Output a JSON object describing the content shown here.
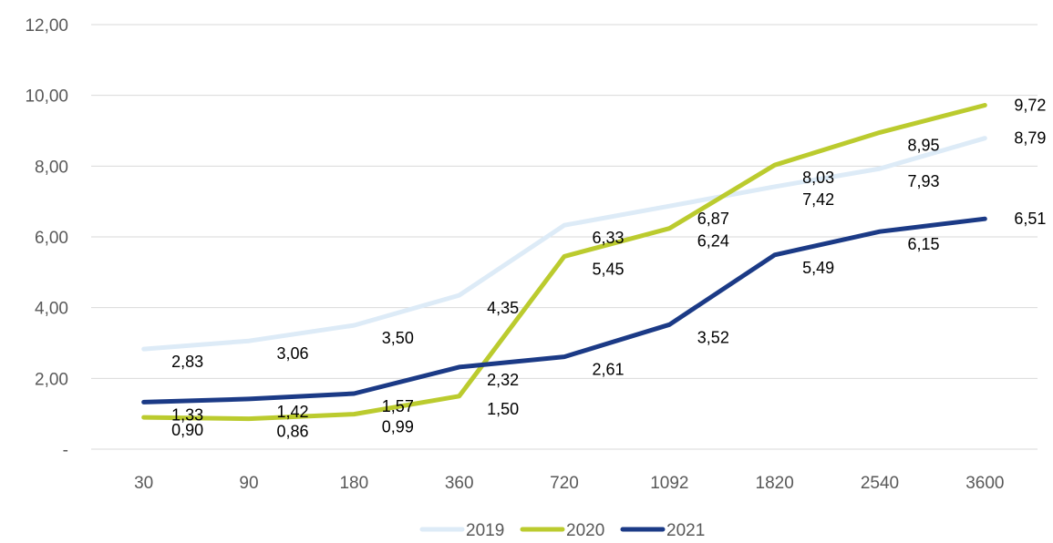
{
  "chart_data": {
    "type": "line",
    "categories": [
      "30",
      "90",
      "180",
      "360",
      "720",
      "1092",
      "1820",
      "2540",
      "3600"
    ],
    "y_ticks": [
      "-",
      "2,00",
      "4,00",
      "6,00",
      "8,00",
      "10,00",
      "12,00"
    ],
    "ylim": [
      0,
      12
    ],
    "grid": true,
    "legend_position": "bottom",
    "series": [
      {
        "name": "2019",
        "color": "#DDEBF7",
        "values": [
          2.83,
          3.06,
          3.5,
          4.35,
          6.33,
          6.87,
          7.42,
          7.93,
          8.79
        ],
        "labels": [
          "2,83",
          "3,06",
          "3,50",
          "4,35",
          "6,33",
          "6,87",
          "7,42",
          "7,93",
          "8,79"
        ]
      },
      {
        "name": "2020",
        "color": "#BBCB2E",
        "values": [
          0.9,
          0.86,
          0.99,
          1.5,
          5.45,
          6.24,
          8.03,
          8.95,
          9.72
        ],
        "labels": [
          "0,90",
          "0,86",
          "0,99",
          "1,50",
          "5,45",
          "6,24",
          "8,03",
          "8,95",
          "9,72"
        ]
      },
      {
        "name": "2021",
        "color": "#1B3A86",
        "values": [
          1.33,
          1.42,
          1.57,
          2.32,
          2.61,
          3.52,
          5.49,
          6.15,
          6.51
        ],
        "labels": [
          "1,33",
          "1,42",
          "1,57",
          "2,32",
          "2,61",
          "3,52",
          "5,49",
          "6,15",
          "6,51"
        ]
      }
    ]
  }
}
